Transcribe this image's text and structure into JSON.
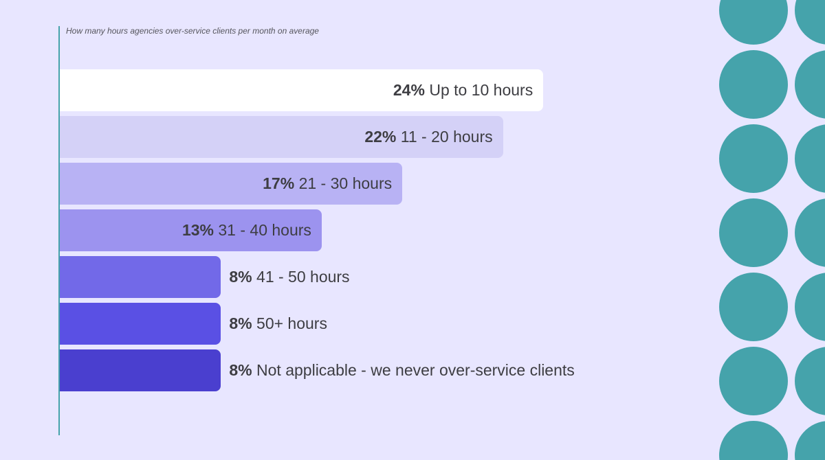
{
  "chart_data": {
    "type": "bar",
    "orientation": "horizontal",
    "title": "How many hours agencies over-service clients per month on average",
    "categories": [
      "Up to 10 hours",
      "11 - 20 hours",
      "21 - 30 hours",
      "31 - 40 hours",
      "41 - 50 hours",
      "50+ hours",
      "Not applicable - we never over-service clients"
    ],
    "values": [
      24,
      22,
      17,
      13,
      8,
      8,
      8
    ],
    "value_labels": [
      "24%",
      "22%",
      "17%",
      "13%",
      "8%",
      "8%",
      "8%"
    ],
    "colors": [
      "#ffffff",
      "#d4d1f7",
      "#b8b2f4",
      "#9c93ef",
      "#7269e8",
      "#5a50e4",
      "#4a3fcf"
    ],
    "grid": false,
    "decoration_color": "#45a3ab"
  }
}
